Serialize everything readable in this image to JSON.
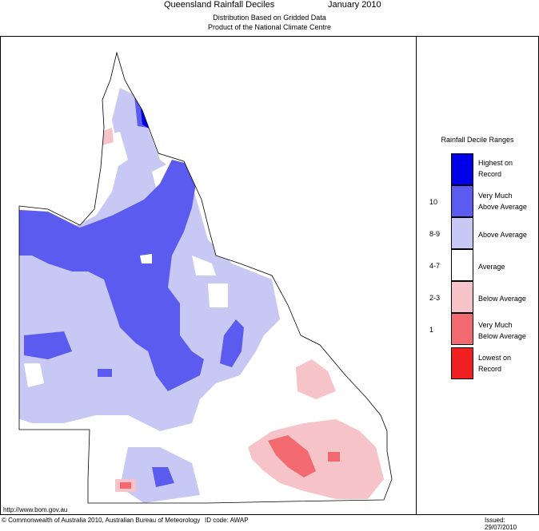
{
  "header": {
    "title": "Queensland Rainfall Deciles",
    "month": "January 2010",
    "subtitle1": "Distribution Based on Gridded Data",
    "subtitle2": "Product of the National Climate Centre"
  },
  "legend": {
    "title": "Rainfall Decile Ranges",
    "items": [
      {
        "label1": "Highest on",
        "label2": "Record",
        "range": "",
        "color": "#0000e8"
      },
      {
        "label1": "Very Much",
        "label2": "Above Average",
        "range": "10",
        "color": "#5b5bf0"
      },
      {
        "label1": "Above Average",
        "label2": "",
        "range": "8-9",
        "color": "#c8c8f4"
      },
      {
        "label1": "Average",
        "label2": "",
        "range": "4-7",
        "color": "#ffffff"
      },
      {
        "label1": "Below Average",
        "label2": "",
        "range": "2-3",
        "color": "#f6c4c8"
      },
      {
        "label1": "Very Much",
        "label2": "Below Average",
        "range": "1",
        "color": "#f26a70"
      },
      {
        "label1": "Lowest on",
        "label2": "Record",
        "range": "",
        "color": "#f02020"
      }
    ]
  },
  "footer": {
    "url": "http://www.bom.gov.au",
    "copyright": "© Commonwealth of Australia 2010, Australian Bureau of Meteorology",
    "id_code": "ID code: AWAP",
    "issued": "Issued: 29/07/2010"
  }
}
